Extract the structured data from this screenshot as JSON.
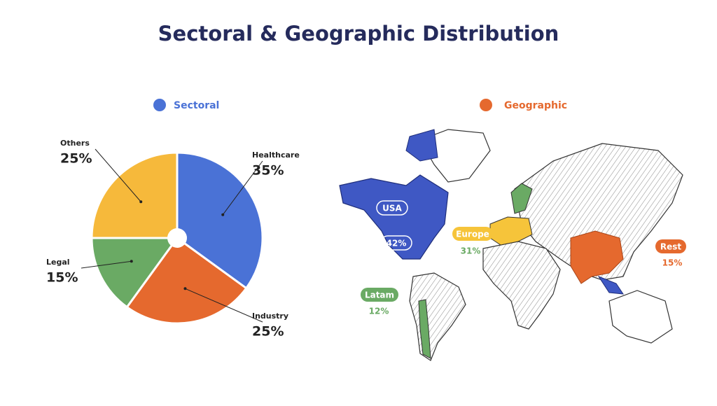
{
  "title": "Sectoral & Geographic Distribution",
  "chart_data": {
    "type": "pie",
    "name": "Sectoral",
    "color": "#4a72d6",
    "categories": [
      "Healthcare",
      "Industry",
      "Legal",
      "Others"
    ],
    "values": [
      35,
      25,
      15,
      25
    ],
    "value_labels": [
      "35%",
      "25%",
      "15%",
      "25%"
    ],
    "colors": [
      "#4a72d6",
      "#e5692e",
      "#6aaa64",
      "#f6b93b"
    ]
  },
  "map": {
    "legend": "Geographic",
    "regions": [
      {
        "label": "USA",
        "share": "42%"
      },
      {
        "label": "Europe",
        "share": "31%"
      },
      {
        "label": "Latam",
        "share": "12%"
      },
      {
        "label": "Rest",
        "share": "15%"
      }
    ]
  }
}
